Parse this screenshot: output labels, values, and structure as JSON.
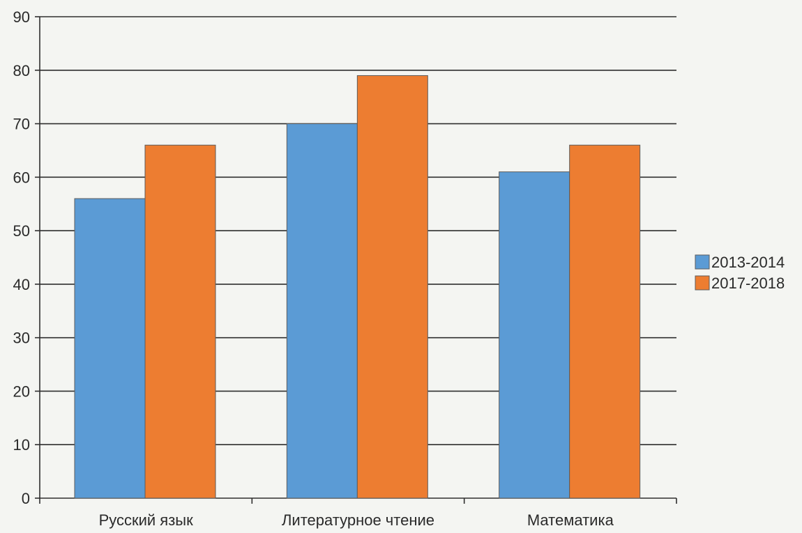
{
  "chart_data": {
    "type": "bar",
    "categories": [
      "Русский язык",
      "Литературное чтение",
      "Математика"
    ],
    "series": [
      {
        "name": "2013-2014",
        "values": [
          56,
          70,
          61
        ]
      },
      {
        "name": "2017-2018",
        "values": [
          66,
          79,
          66
        ]
      }
    ],
    "ylim": [
      0,
      90
    ],
    "yticks": [
      0,
      10,
      20,
      30,
      40,
      50,
      60,
      70,
      80,
      90
    ],
    "title": "",
    "xlabel": "",
    "ylabel": "",
    "grid": true,
    "legend_position": "right",
    "colors": [
      "#5b9bd5",
      "#ed7d31"
    ]
  }
}
